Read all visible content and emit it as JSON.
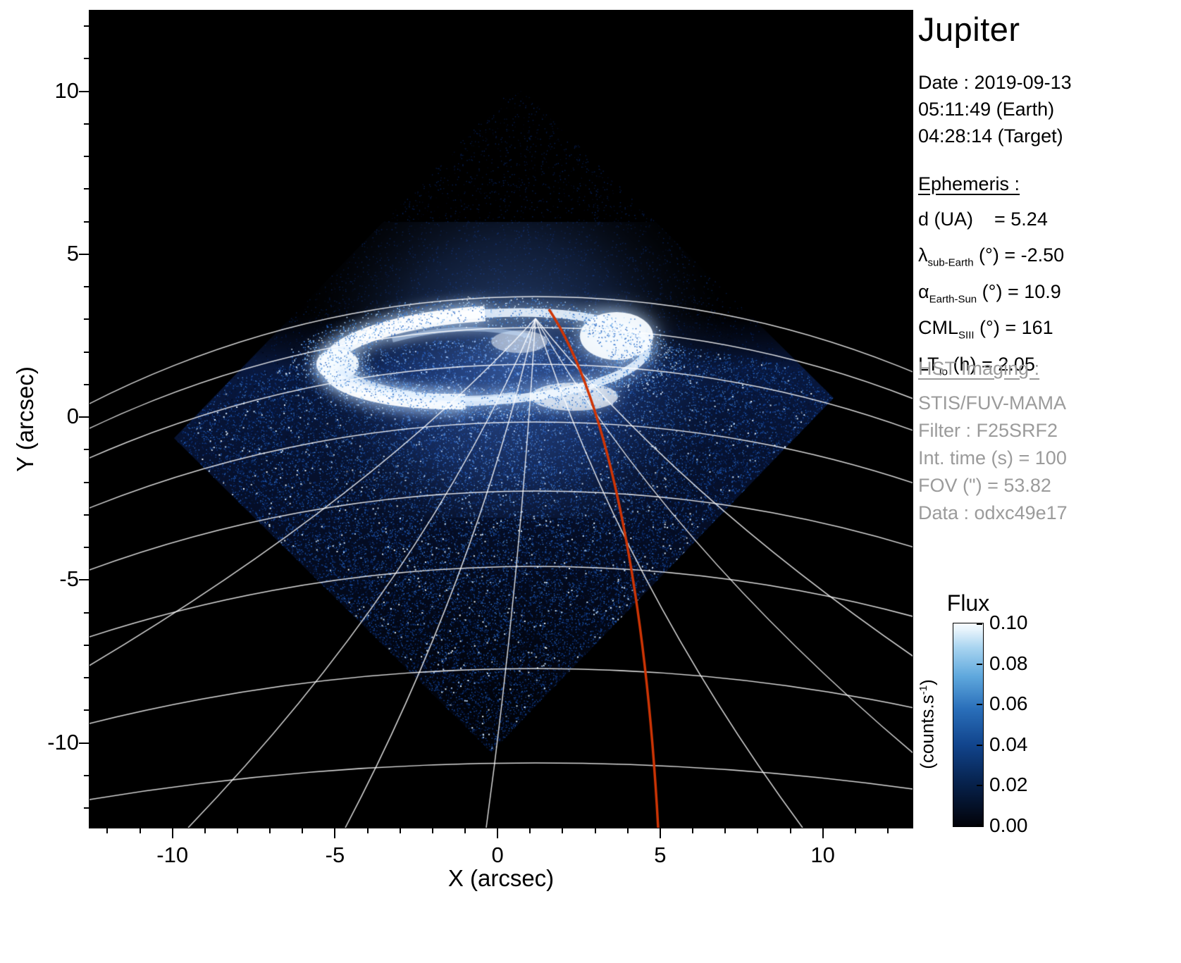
{
  "title": "Jupiter",
  "date_block": {
    "line1": "Date : 2019-09-13",
    "line2": "05:11:49 (Earth)",
    "line3": "04:28:14 (Target)"
  },
  "ephemeris": {
    "header": "Ephemeris :",
    "rows": [
      {
        "pre": "d (UA)",
        "sub": "",
        "post": "    = 5.24"
      },
      {
        "pre": "λ",
        "sub": "sub-Earth",
        "post": " (°) = -2.50"
      },
      {
        "pre": "α",
        "sub": "Earth-Sun",
        "post": " (°) = 10.9"
      },
      {
        "pre": "CML",
        "sub": "SIII",
        "post": " (°) = 161"
      },
      {
        "pre": "LT",
        "sub": "Io",
        "post": " (h) = 2.05"
      }
    ]
  },
  "hst": {
    "header": "HST Imaging :",
    "lines": [
      "STIS/FUV-MAMA",
      "Filter : F25SRF2",
      "Int. time (s) = 100",
      "FOV (\") = 53.82",
      "Data : odxc49e17"
    ]
  },
  "colorbar": {
    "title": "Flux",
    "unit_pre": "(counts.s",
    "unit_sup": "-1",
    "unit_post": ")",
    "tick_labels": [
      "0.10",
      "0.08",
      "0.06",
      "0.04",
      "0.02",
      "0.00"
    ]
  },
  "chart_data": {
    "type": "heatmap",
    "title": "Jupiter",
    "description": "HST STIS far-UV image of Jupiter's northern aurora: diamond-shaped detector field of view rendered in a black-to-blue-to-white flux colormap over black sky, bright white auroral oval near the north pole, white planetocentric graticule (latitude arcs and meridians) and a red highlighted meridian overlay",
    "xlabel": "X (arcsec)",
    "ylabel": "Y (arcsec)",
    "xlim": [
      -12.55,
      12.76
    ],
    "ylim": [
      -12.6,
      12.48
    ],
    "xticks": [
      -10,
      -5,
      0,
      5,
      10
    ],
    "yticks": [
      -10,
      -5,
      0,
      5,
      10
    ],
    "grid": false,
    "colorbar": {
      "label": "Flux",
      "units": "counts.s^-1",
      "range": [
        0.0,
        0.1
      ],
      "ticks": [
        0.0,
        0.02,
        0.04,
        0.06,
        0.08,
        0.1
      ],
      "colormap": "black-blue-white"
    },
    "overlays": {
      "grid_color": "#ffffff",
      "meridian_color": "#cf3505",
      "fov_diamond_arcsec": [
        [
          0.6,
          10.2
        ],
        [
          10.3,
          0.6
        ],
        [
          -0.2,
          -10.3
        ],
        [
          -9.9,
          -0.6
        ]
      ],
      "aurora_oval_center_arcsec": [
        -0.3,
        1.9
      ],
      "aurora_oval_radii_arcsec": [
        4.9,
        1.35
      ],
      "red_meridian_endpoints_arcsec": [
        [
          0.7,
          3.2
        ],
        [
          5.0,
          -12.6
        ]
      ]
    },
    "ephemeris_values": {
      "d_UA": 5.24,
      "lambda_subEarth_deg": -2.5,
      "alpha_EarthSun_deg": 10.9,
      "CML_SIII_deg": 161,
      "LT_Io_h": 2.05
    },
    "observation": {
      "date": "2019-09-13",
      "time_earth": "05:11:49",
      "time_target": "04:28:14",
      "instrument": "STIS/FUV-MAMA",
      "filter": "F25SRF2",
      "int_time_s": 100,
      "fov_arcsec": 53.82,
      "data_id": "odxc49e17"
    }
  }
}
